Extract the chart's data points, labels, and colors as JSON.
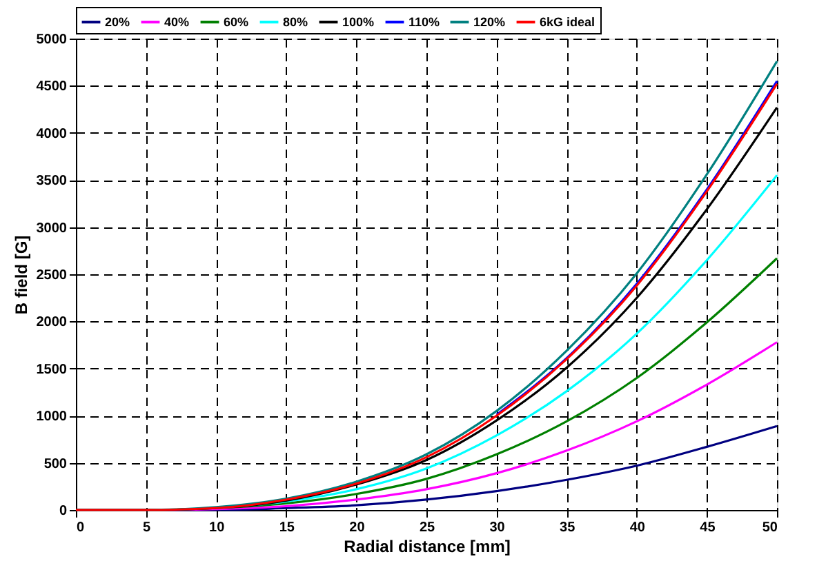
{
  "chart_data": {
    "type": "line",
    "xlabel": "Radial distance [mm]",
    "ylabel": "B field [G]",
    "x": [
      0,
      5,
      10,
      15,
      20,
      25,
      30,
      35,
      40,
      45,
      50
    ],
    "xlim": [
      0,
      50
    ],
    "xticks": [
      0,
      5,
      10,
      15,
      20,
      25,
      30,
      35,
      40,
      45,
      50
    ],
    "ylim": [
      0,
      5000
    ],
    "yticks": [
      0,
      500,
      1000,
      1500,
      2000,
      2500,
      3000,
      3500,
      4000,
      4500,
      5000
    ],
    "grid": true,
    "legend": "top",
    "marker": "none",
    "line_style": "solid",
    "series": [
      {
        "name": "20%",
        "color": "#000080",
        "values": [
          0,
          0,
          0,
          20,
          50,
          110,
          200,
          320,
          470,
          670,
          890
        ]
      },
      {
        "name": "40%",
        "color": "#ff00ff",
        "values": [
          0,
          0,
          10,
          40,
          110,
          220,
          390,
          630,
          940,
          1330,
          1780
        ]
      },
      {
        "name": "60%",
        "color": "#008000",
        "values": [
          0,
          0,
          20,
          70,
          170,
          330,
          590,
          940,
          1400,
          1990,
          2670
        ]
      },
      {
        "name": "80%",
        "color": "#00ffff",
        "values": [
          null,
          null,
          20,
          90,
          220,
          440,
          790,
          1260,
          1870,
          2650,
          3550
        ]
      },
      {
        "name": "100%",
        "color": "#000000",
        "values": [
          0,
          0,
          20,
          100,
          270,
          530,
          950,
          1510,
          2250,
          3190,
          4270
        ]
      },
      {
        "name": "110%",
        "color": "#0000ff",
        "values": [
          null,
          null,
          null,
          null,
          null,
          null,
          1010,
          1610,
          2400,
          3400,
          4550
        ]
      },
      {
        "name": "120%",
        "color": "#008080",
        "values": [
          0,
          0,
          30,
          120,
          300,
          590,
          1050,
          1690,
          2510,
          3560,
          4760
        ]
      },
      {
        "name": "6kG ideal",
        "color": "#ff0000",
        "values": [
          0,
          0,
          20,
          110,
          280,
          560,
          1000,
          1600,
          2380,
          3380,
          4520
        ]
      }
    ]
  }
}
